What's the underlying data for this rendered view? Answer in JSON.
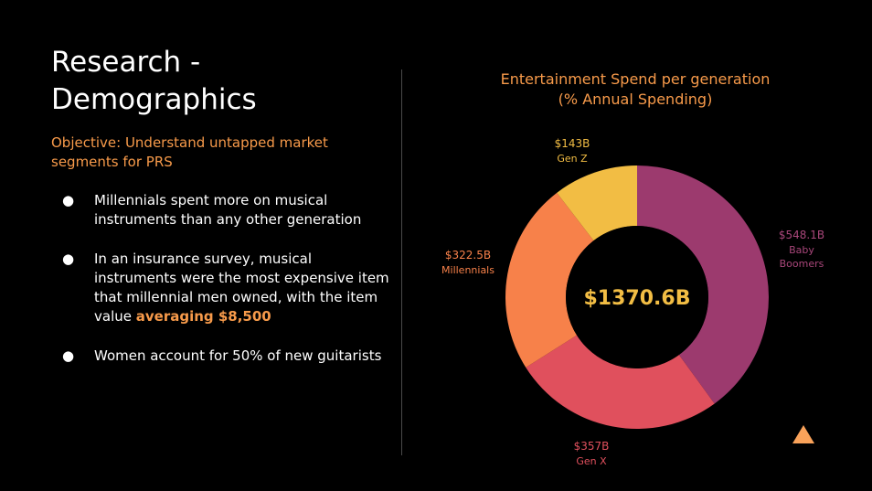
{
  "slide": {
    "title_line1": "Research -",
    "title_line2": "Demographics",
    "objective": "Objective: Understand untapped market segments for PRS",
    "bullets": [
      {
        "text": "Millennials spent more on musical instruments than any other generation"
      },
      {
        "text": "In an insurance survey, musical instruments were the most expensive item that millennial men owned, with the item value ",
        "highlight": "averaging $8,500"
      },
      {
        "text": "Women account for 50% of new guitarists"
      }
    ],
    "bullet_symbol": "●",
    "accent_color": "#f79a4a"
  },
  "chart_data": {
    "type": "pie",
    "variant": "donut",
    "title_line1": "Entertainment Spend per generation",
    "title_line2": "(% Annual Spending)",
    "center_label": "$1370.6B",
    "total": 1370.6,
    "unit": "$B",
    "slices": [
      {
        "name": "Baby Boomers",
        "value": 548.1,
        "value_label": "$548.1B",
        "name_line1": "Baby",
        "name_line2": "Boomers",
        "color": "#9c3a6e"
      },
      {
        "name": "Gen X",
        "value": 357,
        "value_label": "$357B",
        "name_line1": "Gen X",
        "name_line2": "",
        "color": "#e0505d"
      },
      {
        "name": "Millennials",
        "value": 322.5,
        "value_label": "$322.5B",
        "name_line1": "Millennials",
        "name_line2": "",
        "color": "#f7814a"
      },
      {
        "name": "Gen Z",
        "value": 143,
        "value_label": "$143B",
        "name_line1": "Gen Z",
        "name_line2": "",
        "color": "#f2bd44"
      }
    ],
    "start": "top",
    "direction": "clockwise",
    "legend": "none"
  },
  "decor": {
    "corner_icon": "triangle-icon",
    "corner_color": "#f9a25a"
  }
}
